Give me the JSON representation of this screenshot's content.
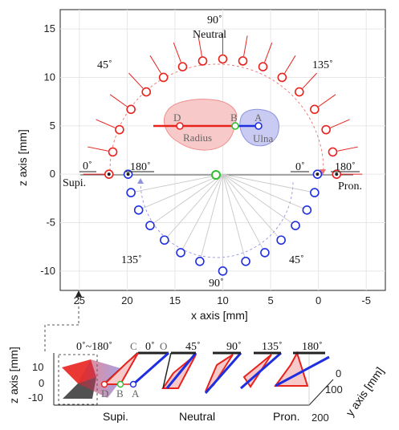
{
  "chart_data": [
    {
      "type": "scatter",
      "xlabel": "x axis [mm]",
      "ylabel": "z axis [mm]",
      "xlim": [
        27,
        -7
      ],
      "ylim": [
        -12,
        17
      ],
      "x_ticks": [
        "25",
        "20",
        "15",
        "10",
        "5",
        "0",
        "-5"
      ],
      "y_ticks": [
        "15",
        "10",
        "5",
        "0",
        "-5",
        "-10"
      ],
      "grid": true,
      "center": {
        "x": 10,
        "z": 0
      },
      "series": [
        {
          "color": "#e8231e",
          "values_xz": [
            [
              21.9,
              0
            ],
            [
              21.5,
              2.3
            ],
            [
              20.8,
              4.6
            ],
            [
              19.6,
              6.7
            ],
            [
              18.0,
              8.5
            ],
            [
              16.2,
              10.0
            ],
            [
              14.2,
              11.1
            ],
            [
              12.1,
              11.7
            ],
            [
              10.0,
              11.9
            ],
            [
              7.9,
              11.7
            ],
            [
              5.8,
              11.1
            ],
            [
              3.8,
              10.0
            ],
            [
              2.0,
              8.5
            ],
            [
              0.4,
              6.7
            ],
            [
              -0.8,
              4.6
            ],
            [
              -1.5,
              2.3
            ],
            [
              -1.9,
              0
            ]
          ]
        },
        {
          "color": "#1f2fe0",
          "values_xz": [
            [
              19.9,
              0
            ],
            [
              19.6,
              -1.9
            ],
            [
              18.8,
              -3.7
            ],
            [
              17.6,
              -5.3
            ],
            [
              16.1,
              -6.8
            ],
            [
              14.4,
              -8.1
            ],
            [
              12.4,
              -9.0
            ],
            [
              10.0,
              -10.0
            ],
            [
              7.6,
              -9.0
            ],
            [
              5.6,
              -8.1
            ],
            [
              3.9,
              -6.8
            ],
            [
              2.4,
              -5.3
            ],
            [
              1.2,
              -3.7
            ],
            [
              0.4,
              -1.9
            ],
            [
              0.1,
              0
            ]
          ]
        }
      ],
      "annotations": {
        "neutral_top": "90˚",
        "neutral_label": "Neutral",
        "deg45_top": "45˚",
        "deg135_top": "135˚",
        "supi_deg": "0˚",
        "supi_label": "Supi.",
        "blue_180": "180˚",
        "blue_0": "0˚",
        "pron_deg": "180˚",
        "pron_label": "Pron.",
        "deg135_bottom": "135˚",
        "deg90_bottom": "90˚",
        "deg45_bottom": "45˚",
        "radius": "Radius",
        "ulna": "Ulna",
        "point_d": "D",
        "point_b": "B",
        "point_a": "A"
      }
    },
    {
      "type": "3d-line",
      "zlabel": "z axis [mm]",
      "ylabel": "y axis [mm]",
      "z_ticks": [
        "10",
        "0",
        "-10"
      ],
      "y_ticks": [
        "0",
        "100",
        "200"
      ],
      "headers": {
        "range": "0˚~180˚",
        "c": "C",
        "o": "0˚",
        "o2": "O",
        "h45": "45˚",
        "h90": "90˚",
        "h135": "135˚",
        "h180": "180˚"
      },
      "points": {
        "d": "D",
        "b": "B",
        "a": "A"
      },
      "bottom_labels": {
        "supi": "Supi.",
        "neutral": "Neutral",
        "pron": "Pron."
      }
    }
  ]
}
